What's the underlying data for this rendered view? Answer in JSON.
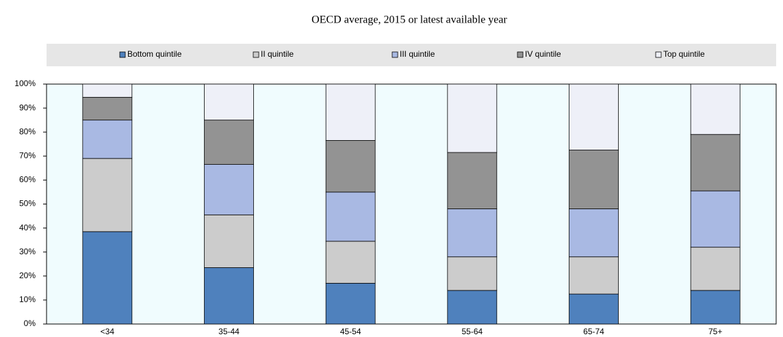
{
  "chart_data": {
    "type": "stacked-bar",
    "title": "OECD average, 2015 or latest available year",
    "categories": [
      "<34",
      "35-44",
      "45-54",
      "55-64",
      "65-74",
      "75+"
    ],
    "series": [
      {
        "name": "Bottom quintile",
        "color": "#4f81bd",
        "values": [
          38.5,
          23.5,
          17,
          14,
          12.5,
          14
        ]
      },
      {
        "name": "II quintile",
        "color": "#cccccc",
        "values": [
          30.5,
          22,
          17.5,
          14,
          15.5,
          18
        ]
      },
      {
        "name": "III quintile",
        "color": "#a9b9e3",
        "values": [
          16,
          21,
          20.5,
          20,
          20,
          23.5
        ]
      },
      {
        "name": "IV quintile",
        "color": "#939393",
        "values": [
          9.5,
          18.5,
          21.5,
          23.5,
          24.5,
          23.5
        ]
      },
      {
        "name": "Top quintile",
        "color": "#eef0f8",
        "values": [
          5.5,
          15,
          23.5,
          28.5,
          27.5,
          21
        ]
      }
    ],
    "ylim": [
      0,
      100
    ],
    "yticks": [
      {
        "value": 0,
        "label": "0%"
      },
      {
        "value": 10,
        "label": "10%"
      },
      {
        "value": 20,
        "label": "20%"
      },
      {
        "value": 30,
        "label": "30%"
      },
      {
        "value": 40,
        "label": "40%"
      },
      {
        "value": 50,
        "label": "50%"
      },
      {
        "value": 60,
        "label": "60%"
      },
      {
        "value": 70,
        "label": "70%"
      },
      {
        "value": 80,
        "label": "80%"
      },
      {
        "value": 90,
        "label": "90%"
      },
      {
        "value": 100,
        "label": "100%"
      }
    ],
    "grid": false,
    "legend": "top"
  }
}
